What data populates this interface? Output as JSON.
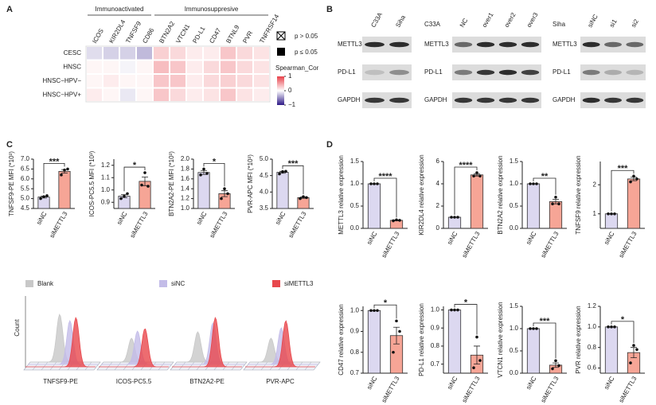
{
  "panel_labels": [
    "A",
    "B",
    "C",
    "D"
  ],
  "chart_data": [
    {
      "type": "heatmap",
      "column_groups": [
        "Immunoactivated",
        "Immunosuppresive"
      ],
      "columns": [
        "ICOS",
        "KIR2DL4",
        "TNFSF9",
        "CD86",
        "BTN2A2",
        "VTCN1",
        "PD-L1",
        "CD47",
        "BTNL9",
        "PVR",
        "TNFRSF14"
      ],
      "rows": [
        "CESC",
        "HNSC",
        "HNSC−HPV−",
        "HNSC−HPV+"
      ],
      "values": [
        [
          -0.15,
          -0.2,
          -0.2,
          -0.3,
          0.25,
          0.2,
          0.1,
          0.1,
          0.3,
          0.2,
          0.15
        ],
        [
          0.05,
          0.05,
          -0.05,
          0.05,
          0.35,
          0.3,
          0.1,
          0.2,
          0.3,
          0.2,
          0.15
        ],
        [
          0.05,
          0.1,
          0.05,
          0.05,
          0.3,
          0.3,
          0.1,
          0.2,
          0.25,
          0.2,
          0.15
        ],
        [
          0.1,
          0.05,
          -0.1,
          0.05,
          0.3,
          0.2,
          0.1,
          0.15,
          0.3,
          0.15,
          0.1
        ]
      ],
      "crossed": [
        [
          false,
          false,
          false,
          false,
          false,
          false,
          false,
          false,
          false,
          false,
          false
        ],
        [
          false,
          false,
          false,
          false,
          false,
          false,
          false,
          false,
          false,
          false,
          false
        ],
        [
          true,
          false,
          true,
          true,
          false,
          false,
          true,
          false,
          false,
          true,
          false
        ],
        [
          true,
          true,
          true,
          true,
          true,
          true,
          true,
          true,
          true,
          true,
          false
        ]
      ],
      "legend": [
        "p > 0.05",
        "p ≤ 0.05"
      ],
      "colorbar_title": "Spearman_Cor",
      "clim": [
        -1,
        1
      ],
      "cticks": [
        1,
        0,
        {
          "value": -1,
          "label": "−1"
        }
      ],
      "colorscale": [
        "#2e1a87",
        "#ffffff",
        "#e8414a"
      ]
    },
    {
      "type": "bar",
      "ylabel": "TNFSF9-PE MFI (*10³)",
      "categories": [
        "siNC",
        "siMETTL3"
      ],
      "colors": [
        "#dcd8f0",
        "#f6a596"
      ],
      "values": [
        5.08,
        6.38
      ],
      "errors": [
        0.05,
        0.09
      ],
      "points": [
        [
          5.0,
          5.1,
          5.15
        ],
        [
          6.2,
          6.45,
          6.5
        ]
      ],
      "significance": "***",
      "ylim": [
        4.5,
        7
      ],
      "yticks": [
        4.5,
        {
          "value": 5,
          "label": "5.0"
        },
        5.5,
        {
          "value": 6,
          "label": "6.0"
        },
        6.5,
        {
          "value": 7,
          "label": "7.0"
        }
      ]
    },
    {
      "type": "bar",
      "ylabel": "ICOS-PC5.5 MFI (*10³)",
      "categories": [
        "siNC",
        "siMETTL3"
      ],
      "colors": [
        "#dcd8f0",
        "#f6a596"
      ],
      "values": [
        0.95,
        1.07
      ],
      "errors": [
        0.012,
        0.035
      ],
      "points": [
        [
          0.93,
          0.95,
          0.97
        ],
        [
          1.04,
          1.14,
          1.03
        ]
      ],
      "significance": "*",
      "ylim": [
        0.85,
        1.25
      ],
      "yticks": [
        0.9,
        {
          "value": 1,
          "label": "1.0"
        },
        1.1,
        1.2
      ]
    },
    {
      "type": "bar",
      "ylabel": "BTN2A2-PE MFI (*10³)",
      "categories": [
        "siNC",
        "siMETTL3"
      ],
      "colors": [
        "#dcd8f0",
        "#f6a596"
      ],
      "values": [
        1.73,
        1.3
      ],
      "errors": [
        0.04,
        0.06
      ],
      "points": [
        [
          1.68,
          1.8,
          1.71
        ],
        [
          1.2,
          1.4,
          1.3
        ]
      ],
      "significance": "*",
      "ylim": [
        1,
        2
      ],
      "yticks": [
        {
          "value": 1,
          "label": "1.0"
        },
        1.2,
        1.4,
        1.6,
        1.8,
        {
          "value": 2,
          "label": "2.0"
        }
      ]
    },
    {
      "type": "bar",
      "ylabel": "PVR-APC MFI (*10³)",
      "categories": [
        "siNC",
        "siMETTL3"
      ],
      "colors": [
        "#dcd8f0",
        "#f6a596"
      ],
      "values": [
        4.6,
        3.83
      ],
      "errors": [
        0.03,
        0.02
      ],
      "points": [
        [
          4.55,
          4.62,
          4.63
        ],
        [
          3.8,
          3.86,
          3.83
        ]
      ],
      "significance": "***",
      "ylim": [
        3.5,
        5
      ],
      "yticks": [
        3.5,
        {
          "value": 4,
          "label": "4.0"
        },
        4.5,
        {
          "value": 5,
          "label": "5.0"
        }
      ]
    },
    {
      "type": "bar",
      "ylabel": "METTL3 relative expression",
      "categories": [
        "siNC",
        "siMETTL3"
      ],
      "colors": [
        "#dcd8f0",
        "#f6a596"
      ],
      "values": [
        1,
        0.18
      ],
      "errors": [
        0,
        0.01
      ],
      "points": [
        [
          1,
          1,
          1
        ],
        [
          0.17,
          0.19,
          0.18
        ]
      ],
      "significance": "****",
      "ylim": [
        0,
        1.5
      ],
      "yticks": [
        {
          "value": 0,
          "label": "0.0"
        },
        0.5,
        {
          "value": 1,
          "label": "1.0"
        },
        1.5
      ]
    },
    {
      "type": "bar",
      "ylabel": "KIR2DL4 relative expression",
      "categories": [
        "siNC",
        "siMETTL3"
      ],
      "colors": [
        "#dcd8f0",
        "#f6a596"
      ],
      "values": [
        1,
        4.8
      ],
      "errors": [
        0,
        0.1
      ],
      "points": [
        [
          1,
          1,
          1
        ],
        [
          4.7,
          5.0,
          4.7
        ]
      ],
      "significance": "****",
      "ylim": [
        0,
        6
      ],
      "yticks": [
        0,
        2,
        4,
        6
      ]
    },
    {
      "type": "bar",
      "ylabel": "BTN2A2 relative expression",
      "categories": [
        "siNC",
        "siMETTL3"
      ],
      "colors": [
        "#dcd8f0",
        "#f6a596"
      ],
      "values": [
        1,
        0.6
      ],
      "errors": [
        0,
        0.05
      ],
      "points": [
        [
          1,
          1,
          1
        ],
        [
          0.55,
          0.7,
          0.55
        ]
      ],
      "significance": "**",
      "ylim": [
        0,
        1.5
      ],
      "yticks": [
        {
          "value": 0,
          "label": "0.0"
        },
        0.5,
        {
          "value": 1,
          "label": "1.0"
        },
        1.5
      ]
    },
    {
      "type": "bar",
      "ylabel": "TNFSF9 relative expression",
      "categories": [
        "siNC",
        "siMETTL3"
      ],
      "colors": [
        "#dcd8f0",
        "#f6a596"
      ],
      "values": [
        1,
        2.2
      ],
      "errors": [
        0,
        0.06
      ],
      "points": [
        [
          1,
          1,
          1
        ],
        [
          2.1,
          2.3,
          2.2
        ]
      ],
      "significance": "***",
      "ylim": [
        0.5,
        2.8
      ],
      "yticks": [
        1,
        2
      ]
    },
    {
      "type": "bar",
      "ylabel": "CD47 relative expression",
      "categories": [
        "siNC",
        "siMETTL3"
      ],
      "colors": [
        "#dcd8f0",
        "#f6a596"
      ],
      "values": [
        1,
        0.88
      ],
      "errors": [
        0,
        0.04
      ],
      "points": [
        [
          1,
          1,
          1
        ],
        [
          0.8,
          0.95,
          0.9
        ]
      ],
      "significance": "*",
      "ylim": [
        0.7,
        1.02
      ],
      "yticks": [
        0.7,
        0.8,
        0.9,
        {
          "value": 1,
          "label": "1.0"
        }
      ]
    },
    {
      "type": "bar",
      "ylabel": "PD-L1 relative expression",
      "categories": [
        "siNC",
        "siMETTL3"
      ],
      "colors": [
        "#dcd8f0",
        "#f6a596"
      ],
      "values": [
        1,
        0.75
      ],
      "errors": [
        0,
        0.05
      ],
      "points": [
        [
          1,
          1,
          1
        ],
        [
          0.68,
          0.85,
          0.72
        ]
      ],
      "significance": "*",
      "ylim": [
        0.65,
        1.02
      ],
      "yticks": [
        0.7,
        0.8,
        0.9,
        {
          "value": 1,
          "label": "1.0"
        }
      ]
    },
    {
      "type": "bar",
      "ylabel": "VTCN1 relative expression",
      "categories": [
        "siNC",
        "siMETTL3"
      ],
      "colors": [
        "#dcd8f0",
        "#f6a596"
      ],
      "values": [
        1,
        0.18
      ],
      "errors": [
        0,
        0.05
      ],
      "points": [
        [
          1,
          1,
          1
        ],
        [
          0.1,
          0.28,
          0.17
        ]
      ],
      "significance": "***",
      "ylim": [
        0,
        1.5
      ],
      "yticks": [
        {
          "value": 0,
          "label": "0.0"
        },
        0.5,
        {
          "value": 1,
          "label": "1.0"
        },
        1.5
      ]
    },
    {
      "type": "bar",
      "ylabel": "PVR relative expression",
      "categories": [
        "siNC",
        "siMETTL3"
      ],
      "colors": [
        "#dcd8f0",
        "#f6a596"
      ],
      "values": [
        1,
        0.75
      ],
      "errors": [
        0,
        0.05
      ],
      "points": [
        [
          1,
          1,
          1
        ],
        [
          0.65,
          0.82,
          0.78
        ]
      ],
      "significance": "*",
      "ylim": [
        0.55,
        1.2
      ],
      "yticks": [
        0.6,
        0.8,
        {
          "value": 1,
          "label": "1.0"
        },
        1.2
      ]
    }
  ],
  "blots": {
    "row_labels": [
      "METTL3",
      "PD-L1",
      "GAPDH"
    ],
    "groups": [
      {
        "lanes": [
          "C33A",
          "Siha"
        ]
      },
      {
        "cell_line": "C33A",
        "lanes": [
          "NC",
          "over1",
          "over2",
          "over3"
        ]
      },
      {
        "cell_line": "Siha",
        "lanes": [
          "siNC",
          "si1",
          "si2"
        ]
      }
    ]
  },
  "flow": {
    "ylabel": "Count",
    "legend": [
      {
        "name": "Blank",
        "color": "#c8c8c8"
      },
      {
        "name": "siNC",
        "color": "#c3bce8"
      },
      {
        "name": "siMETTL3",
        "color": "#e8474c"
      }
    ],
    "panels": [
      "TNFSF9-PE",
      "ICOS-PC5.5",
      "BTN2A2-PE",
      "PVR-APC"
    ]
  }
}
